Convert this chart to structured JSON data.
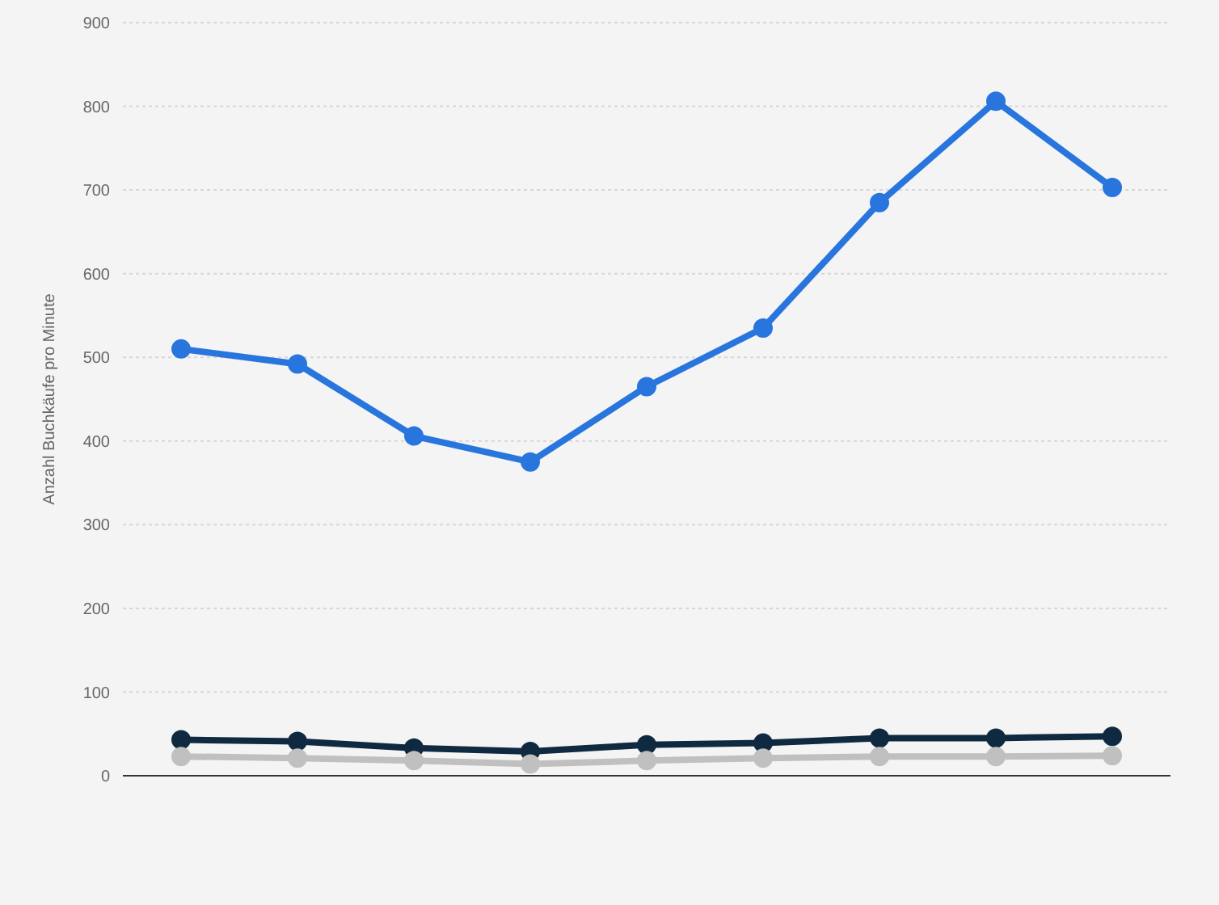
{
  "chart_data": {
    "type": "line",
    "ylabel": "Anzahl Buchkäufe pro Minute",
    "categories": [
      null,
      null,
      null,
      null,
      null,
      null,
      null,
      null,
      null
    ],
    "series": [
      {
        "color": "#2876dd",
        "values": [
          510,
          492,
          406,
          375,
          465,
          535,
          685,
          806,
          703
        ]
      },
      {
        "color": "#0f2a40",
        "values": [
          43,
          41,
          33,
          29,
          37,
          39,
          45,
          45,
          47
        ]
      },
      {
        "color": "#c0c0c0",
        "values": [
          23,
          21,
          18,
          14,
          18,
          21,
          23,
          23,
          24
        ]
      }
    ],
    "ylim": [
      0,
      900
    ],
    "yticks": [
      0,
      100,
      200,
      300,
      400,
      500,
      600,
      700,
      800,
      900
    ],
    "grid": "y",
    "marker": "circle",
    "line_style": "solid",
    "legend": false
  }
}
